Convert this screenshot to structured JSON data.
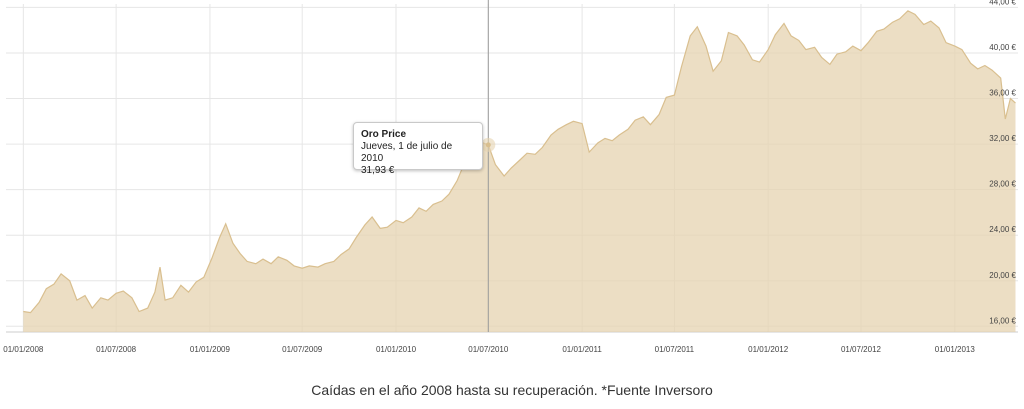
{
  "chart_data": {
    "type": "area",
    "series": [
      {
        "name": "Oro Price",
        "color": "#e6d3b0",
        "line_color": "#d9bf8f",
        "points": [
          [
            "2008-01-01",
            17.3
          ],
          [
            "2008-01-15",
            17.2
          ],
          [
            "2008-02-01",
            18.1
          ],
          [
            "2008-02-15",
            19.3
          ],
          [
            "2008-03-01",
            19.7
          ],
          [
            "2008-03-15",
            20.6
          ],
          [
            "2008-04-01",
            20.0
          ],
          [
            "2008-04-15",
            18.3
          ],
          [
            "2008-05-01",
            18.7
          ],
          [
            "2008-05-15",
            17.6
          ],
          [
            "2008-06-01",
            18.5
          ],
          [
            "2008-06-15",
            18.3
          ],
          [
            "2008-07-01",
            18.9
          ],
          [
            "2008-07-15",
            19.1
          ],
          [
            "2008-08-01",
            18.5
          ],
          [
            "2008-08-15",
            17.3
          ],
          [
            "2008-09-01",
            17.6
          ],
          [
            "2008-09-15",
            19.0
          ],
          [
            "2008-09-25",
            21.2
          ],
          [
            "2008-10-05",
            18.3
          ],
          [
            "2008-10-20",
            18.5
          ],
          [
            "2008-11-05",
            19.6
          ],
          [
            "2008-11-20",
            19.0
          ],
          [
            "2008-12-05",
            19.9
          ],
          [
            "2008-12-20",
            20.3
          ],
          [
            "2009-01-05",
            22.0
          ],
          [
            "2009-01-20",
            23.8
          ],
          [
            "2009-02-01",
            25.0
          ],
          [
            "2009-02-15",
            23.3
          ],
          [
            "2009-03-01",
            22.4
          ],
          [
            "2009-03-15",
            21.7
          ],
          [
            "2009-04-01",
            21.5
          ],
          [
            "2009-04-15",
            21.9
          ],
          [
            "2009-05-01",
            21.5
          ],
          [
            "2009-05-15",
            22.1
          ],
          [
            "2009-06-01",
            21.8
          ],
          [
            "2009-06-15",
            21.3
          ],
          [
            "2009-07-01",
            21.1
          ],
          [
            "2009-07-15",
            21.3
          ],
          [
            "2009-08-01",
            21.2
          ],
          [
            "2009-08-15",
            21.5
          ],
          [
            "2009-09-01",
            21.7
          ],
          [
            "2009-09-15",
            22.3
          ],
          [
            "2009-10-01",
            22.8
          ],
          [
            "2009-10-15",
            23.8
          ],
          [
            "2009-11-01",
            24.9
          ],
          [
            "2009-11-15",
            25.6
          ],
          [
            "2009-12-01",
            24.6
          ],
          [
            "2009-12-15",
            24.7
          ],
          [
            "2010-01-01",
            25.3
          ],
          [
            "2010-01-15",
            25.1
          ],
          [
            "2010-02-01",
            25.6
          ],
          [
            "2010-02-15",
            26.4
          ],
          [
            "2010-03-01",
            26.1
          ],
          [
            "2010-03-15",
            26.7
          ],
          [
            "2010-04-01",
            27.0
          ],
          [
            "2010-04-15",
            27.6
          ],
          [
            "2010-05-01",
            28.8
          ],
          [
            "2010-05-15",
            30.3
          ],
          [
            "2010-06-01",
            31.2
          ],
          [
            "2010-06-15",
            32.2
          ],
          [
            "2010-07-01",
            31.93
          ],
          [
            "2010-07-15",
            30.2
          ],
          [
            "2010-08-01",
            29.2
          ],
          [
            "2010-08-15",
            29.9
          ],
          [
            "2010-09-01",
            30.6
          ],
          [
            "2010-09-15",
            31.2
          ],
          [
            "2010-10-01",
            31.1
          ],
          [
            "2010-10-15",
            31.7
          ],
          [
            "2010-11-01",
            32.8
          ],
          [
            "2010-11-15",
            33.3
          ],
          [
            "2010-12-01",
            33.7
          ],
          [
            "2010-12-15",
            34.0
          ],
          [
            "2011-01-01",
            33.8
          ],
          [
            "2011-01-15",
            31.3
          ],
          [
            "2011-02-01",
            32.1
          ],
          [
            "2011-02-15",
            32.5
          ],
          [
            "2011-03-01",
            32.3
          ],
          [
            "2011-03-15",
            32.8
          ],
          [
            "2011-04-01",
            33.3
          ],
          [
            "2011-04-15",
            34.1
          ],
          [
            "2011-05-01",
            34.4
          ],
          [
            "2011-05-15",
            33.7
          ],
          [
            "2011-06-01",
            34.6
          ],
          [
            "2011-06-15",
            36.1
          ],
          [
            "2011-07-01",
            36.3
          ],
          [
            "2011-07-15",
            38.8
          ],
          [
            "2011-08-01",
            41.5
          ],
          [
            "2011-08-15",
            42.3
          ],
          [
            "2011-09-01",
            40.6
          ],
          [
            "2011-09-15",
            38.4
          ],
          [
            "2011-10-01",
            39.3
          ],
          [
            "2011-10-15",
            41.8
          ],
          [
            "2011-11-01",
            41.5
          ],
          [
            "2011-11-15",
            40.7
          ],
          [
            "2011-12-01",
            39.4
          ],
          [
            "2011-12-15",
            39.2
          ],
          [
            "2012-01-01",
            40.3
          ],
          [
            "2012-01-15",
            41.6
          ],
          [
            "2012-02-01",
            42.6
          ],
          [
            "2012-02-15",
            41.5
          ],
          [
            "2012-03-01",
            41.1
          ],
          [
            "2012-03-15",
            40.3
          ],
          [
            "2012-04-01",
            40.5
          ],
          [
            "2012-04-15",
            39.6
          ],
          [
            "2012-05-01",
            39.0
          ],
          [
            "2012-05-15",
            39.9
          ],
          [
            "2012-06-01",
            40.1
          ],
          [
            "2012-06-15",
            40.6
          ],
          [
            "2012-07-01",
            40.2
          ],
          [
            "2012-07-15",
            40.9
          ],
          [
            "2012-08-01",
            41.9
          ],
          [
            "2012-08-15",
            42.1
          ],
          [
            "2012-09-01",
            42.7
          ],
          [
            "2012-09-15",
            43.0
          ],
          [
            "2012-10-01",
            43.7
          ],
          [
            "2012-10-15",
            43.4
          ],
          [
            "2012-11-01",
            42.5
          ],
          [
            "2012-11-15",
            42.8
          ],
          [
            "2012-12-01",
            42.2
          ],
          [
            "2012-12-15",
            40.9
          ],
          [
            "2013-01-01",
            40.6
          ],
          [
            "2013-01-15",
            40.3
          ],
          [
            "2013-02-01",
            39.1
          ],
          [
            "2013-02-15",
            38.6
          ],
          [
            "2013-03-01",
            38.9
          ],
          [
            "2013-03-15",
            38.5
          ],
          [
            "2013-04-01",
            37.8
          ],
          [
            "2013-04-10",
            34.2
          ],
          [
            "2013-04-20",
            36.0
          ],
          [
            "2013-04-30",
            35.6
          ]
        ]
      }
    ],
    "x_ticks": [
      "01/01/2008",
      "01/07/2008",
      "01/01/2009",
      "01/07/2009",
      "01/01/2010",
      "01/07/2010",
      "01/01/2011",
      "01/07/2011",
      "01/01/2012",
      "01/07/2012",
      "01/01/2013"
    ],
    "y_ticks": [
      "16,00 €",
      "20,00 €",
      "24,00 €",
      "28,00 €",
      "32,00 €",
      "36,00 €",
      "40,00 €",
      "44,00 €"
    ],
    "ylim": [
      15.5,
      44.3
    ],
    "xlim": [
      "2007-11-28",
      "2013-05-05"
    ],
    "grid": true,
    "crosshair_date": "2010-07-01",
    "tooltip": {
      "title": "Oro Price",
      "date": "Jueves, 1 de julio de 2010",
      "value": "31,93 €"
    }
  },
  "caption": "Caídas en el año 2008 hasta su recuperación. *Fuente Inversoro"
}
